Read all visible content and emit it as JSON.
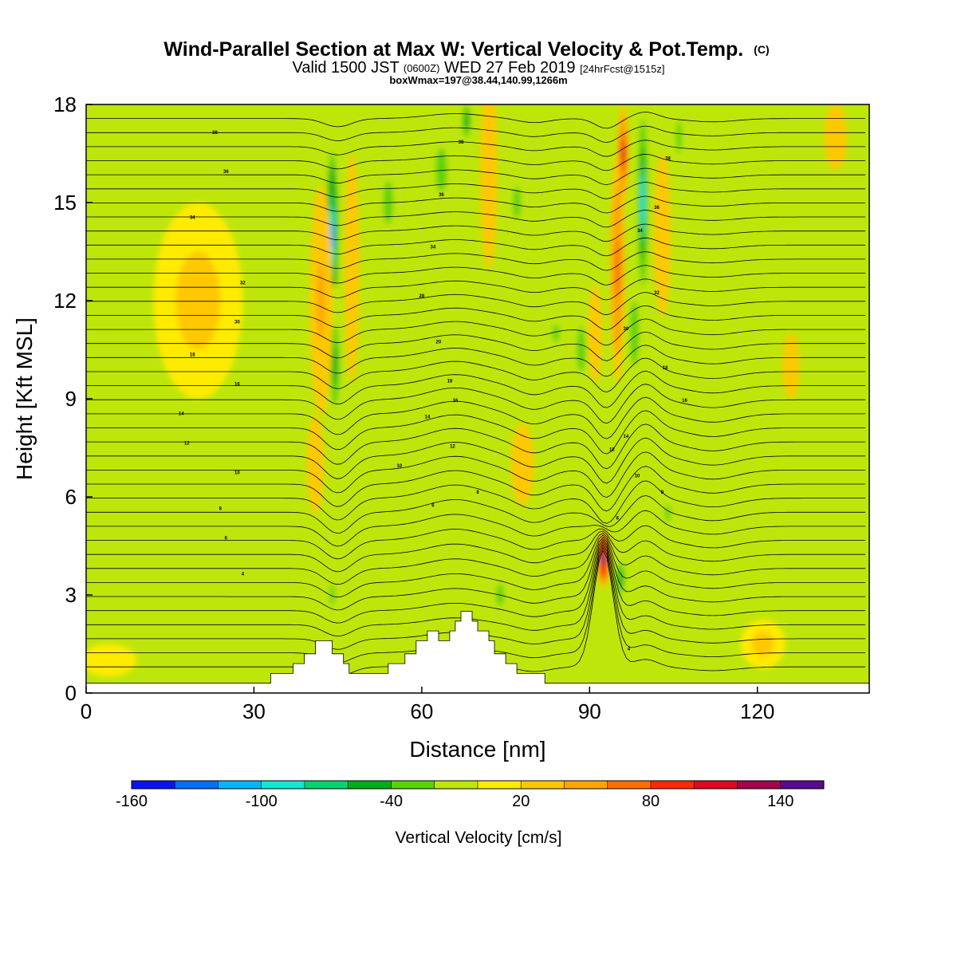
{
  "header": {
    "title_main": "Wind-Parallel Section at Max W: Vertical Velocity & Pot.Temp.",
    "title_tag": "(C)",
    "valid_prefix": "Valid 1500 JST",
    "valid_zulu": "(0600Z)",
    "valid_date": "WED 27 Feb 2019",
    "forecast": "[24hrFcst@1515z]",
    "boxwmax": "boxWmax=197@38.44,140.99,1266m"
  },
  "chart_data": {
    "type": "heatmap",
    "xlabel": "Distance [nm]",
    "ylabel": "Height [Kft MSL]",
    "xlim": [
      0,
      140
    ],
    "ylim": [
      0,
      18
    ],
    "x_ticks": [
      0,
      30,
      60,
      90,
      120
    ],
    "y_ticks": [
      0,
      3,
      6,
      9,
      12,
      15,
      18
    ],
    "x_tick_labels": [
      "0",
      "30",
      "60",
      "90",
      "120"
    ],
    "y_tick_labels": [
      "0",
      "3",
      "6",
      "9",
      "12",
      "15",
      "18"
    ],
    "background_value": 10,
    "terrain": [
      [
        0,
        0.3
      ],
      [
        30,
        0.3
      ],
      [
        33,
        0.3
      ],
      [
        33,
        0.6
      ],
      [
        37,
        0.6
      ],
      [
        37,
        0.9
      ],
      [
        39,
        0.9
      ],
      [
        39,
        1.2
      ],
      [
        41,
        1.2
      ],
      [
        41,
        1.6
      ],
      [
        44,
        1.6
      ],
      [
        44,
        1.2
      ],
      [
        46,
        1.2
      ],
      [
        46,
        0.9
      ],
      [
        47,
        0.9
      ],
      [
        47,
        0.6
      ],
      [
        54,
        0.6
      ],
      [
        54,
        0.9
      ],
      [
        57,
        0.9
      ],
      [
        57,
        1.2
      ],
      [
        59,
        1.2
      ],
      [
        59,
        1.6
      ],
      [
        61,
        1.6
      ],
      [
        61,
        1.9
      ],
      [
        63,
        1.9
      ],
      [
        63,
        1.6
      ],
      [
        65,
        1.6
      ],
      [
        65,
        1.9
      ],
      [
        66,
        1.9
      ],
      [
        66,
        2.2
      ],
      [
        67,
        2.2
      ],
      [
        67,
        2.5
      ],
      [
        69,
        2.5
      ],
      [
        69,
        2.2
      ],
      [
        70,
        2.2
      ],
      [
        70,
        1.9
      ],
      [
        72,
        1.9
      ],
      [
        72,
        1.6
      ],
      [
        73,
        1.6
      ],
      [
        73,
        1.2
      ],
      [
        75,
        1.2
      ],
      [
        75,
        0.9
      ],
      [
        77,
        0.9
      ],
      [
        77,
        0.6
      ],
      [
        82,
        0.6
      ],
      [
        82,
        0.3
      ],
      [
        140,
        0.3
      ]
    ],
    "velocity_features": [
      {
        "x": 44,
        "z": 14,
        "width": 1.2,
        "height": 6,
        "value": -110
      },
      {
        "x": 44.5,
        "z": 10,
        "width": 1.5,
        "height": 5,
        "value": -50
      },
      {
        "x": 42,
        "z": 12,
        "width": 2,
        "height": 7,
        "value": 45
      },
      {
        "x": 41,
        "z": 7,
        "width": 1.5,
        "height": 3,
        "value": 30
      },
      {
        "x": 44,
        "z": 3,
        "width": 1.3,
        "height": 2,
        "value": -35
      },
      {
        "x": 47.5,
        "z": 13,
        "width": 1.3,
        "height": 7,
        "value": 35
      },
      {
        "x": 54,
        "z": 15,
        "width": 2.5,
        "height": 4,
        "value": -30
      },
      {
        "x": 63.5,
        "z": 16,
        "width": 3,
        "height": 4,
        "value": -30
      },
      {
        "x": 68,
        "z": 17.5,
        "width": 1.5,
        "height": 2,
        "value": -50
      },
      {
        "x": 72,
        "z": 16,
        "width": 1.5,
        "height": 6,
        "value": 30
      },
      {
        "x": 77,
        "z": 15,
        "width": 2,
        "height": 3,
        "value": -25
      },
      {
        "x": 78,
        "z": 7,
        "width": 2,
        "height": 2.5,
        "value": 30
      },
      {
        "x": 74,
        "z": 3,
        "width": 2,
        "height": 2,
        "value": -35
      },
      {
        "x": 84,
        "z": 11,
        "width": 1.8,
        "height": 1.6,
        "value": -30
      },
      {
        "x": 88.5,
        "z": 10.5,
        "width": 1.5,
        "height": 2.8,
        "value": -40
      },
      {
        "x": 91,
        "z": 11,
        "width": 1.2,
        "height": 3,
        "value": 35
      },
      {
        "x": 95,
        "z": 13,
        "width": 1.3,
        "height": 7,
        "value": 70
      },
      {
        "x": 96,
        "z": 16.5,
        "width": 1,
        "height": 3,
        "value": 100
      },
      {
        "x": 99.5,
        "z": 15,
        "width": 1,
        "height": 6,
        "value": -100
      },
      {
        "x": 98,
        "z": 11,
        "width": 1.5,
        "height": 4,
        "value": -40
      },
      {
        "x": 103,
        "z": 14,
        "width": 1.5,
        "height": 5,
        "value": 35
      },
      {
        "x": 106,
        "z": 17,
        "width": 1.5,
        "height": 3,
        "value": -30
      },
      {
        "x": 104,
        "z": 5.5,
        "width": 1.5,
        "height": 1.5,
        "value": -30
      },
      {
        "x": 92.5,
        "z": 4.1,
        "width": 1.1,
        "height": 1.8,
        "value": 150
      },
      {
        "x": 95.5,
        "z": 3.5,
        "width": 1.5,
        "height": 2,
        "value": -45
      },
      {
        "x": 20,
        "z": 12,
        "width": 8,
        "height": 6,
        "value": 20
      },
      {
        "x": 4,
        "z": 1,
        "width": 5,
        "height": 1,
        "value": 18
      },
      {
        "x": 126,
        "z": 10,
        "width": 1.5,
        "height": 2,
        "value": 30
      },
      {
        "x": 134,
        "z": 17,
        "width": 2,
        "height": 2,
        "value": 30
      },
      {
        "x": 121,
        "z": 1.5,
        "width": 4,
        "height": 1.5,
        "value": 20
      },
      {
        "x": 118,
        "z": 5,
        "width": 5,
        "height": 2,
        "value": -15
      }
    ],
    "contour_labels": [
      {
        "x": 23,
        "z": 17.1,
        "text": "38"
      },
      {
        "x": 25,
        "z": 15.9,
        "text": "36"
      },
      {
        "x": 19,
        "z": 14.5,
        "text": "34"
      },
      {
        "x": 28,
        "z": 12.5,
        "text": "32"
      },
      {
        "x": 27,
        "z": 11.3,
        "text": "30"
      },
      {
        "x": 19,
        "z": 10.3,
        "text": "18"
      },
      {
        "x": 27,
        "z": 9.4,
        "text": "16"
      },
      {
        "x": 17,
        "z": 8.5,
        "text": "14"
      },
      {
        "x": 18,
        "z": 7.6,
        "text": "12"
      },
      {
        "x": 27,
        "z": 6.7,
        "text": "10"
      },
      {
        "x": 24,
        "z": 5.6,
        "text": "8"
      },
      {
        "x": 25,
        "z": 4.7,
        "text": "6"
      },
      {
        "x": 28,
        "z": 3.6,
        "text": "4"
      },
      {
        "x": 67,
        "z": 16.8,
        "text": "38"
      },
      {
        "x": 63.5,
        "z": 15.2,
        "text": "36"
      },
      {
        "x": 62,
        "z": 13.6,
        "text": "34"
      },
      {
        "x": 60,
        "z": 12.1,
        "text": "28"
      },
      {
        "x": 63,
        "z": 10.7,
        "text": "20"
      },
      {
        "x": 65,
        "z": 9.5,
        "text": "18"
      },
      {
        "x": 66,
        "z": 8.9,
        "text": "16"
      },
      {
        "x": 61,
        "z": 8.4,
        "text": "14"
      },
      {
        "x": 65.5,
        "z": 7.5,
        "text": "12"
      },
      {
        "x": 56,
        "z": 6.9,
        "text": "10"
      },
      {
        "x": 70,
        "z": 6.1,
        "text": "8"
      },
      {
        "x": 62,
        "z": 5.7,
        "text": "6"
      },
      {
        "x": 104,
        "z": 16.3,
        "text": "38"
      },
      {
        "x": 102,
        "z": 14.8,
        "text": "36"
      },
      {
        "x": 99,
        "z": 14.1,
        "text": "34"
      },
      {
        "x": 102,
        "z": 12.2,
        "text": "32"
      },
      {
        "x": 96.5,
        "z": 11.1,
        "text": "30"
      },
      {
        "x": 103.5,
        "z": 9.9,
        "text": "18"
      },
      {
        "x": 107,
        "z": 8.9,
        "text": "16"
      },
      {
        "x": 96.5,
        "z": 7.8,
        "text": "14"
      },
      {
        "x": 94,
        "z": 7.4,
        "text": "12"
      },
      {
        "x": 98.5,
        "z": 6.6,
        "text": "10"
      },
      {
        "x": 103,
        "z": 6.1,
        "text": "8"
      },
      {
        "x": 95,
        "z": 5.3,
        "text": "6"
      },
      {
        "x": 97,
        "z": 1.3,
        "text": "4"
      }
    ],
    "colorbar": {
      "label": "Vertical Velocity [cm/s]",
      "tick_labels": [
        "-160",
        "-100",
        "-40",
        "20",
        "80",
        "140"
      ],
      "tick_values": [
        -160,
        -100,
        -40,
        20,
        80,
        140
      ],
      "bin_edges": [
        -160,
        -140,
        -120,
        -100,
        -80,
        -60,
        -40,
        -20,
        0,
        20,
        40,
        60,
        80,
        100,
        120,
        140,
        160
      ],
      "colors": [
        "#0a14f0",
        "#0a6ef0",
        "#0ab4f5",
        "#14e6d2",
        "#0ad26e",
        "#0aaa1e",
        "#5ad20a",
        "#bee60a",
        "#ffeb00",
        "#ffc800",
        "#ffa500",
        "#ff6e00",
        "#ff280a",
        "#dc0a1e",
        "#a0084b",
        "#5a0a8c"
      ]
    }
  }
}
